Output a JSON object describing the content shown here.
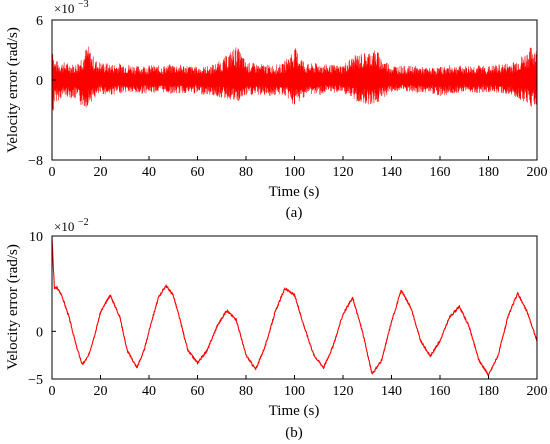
{
  "chart_data": [
    {
      "type": "line",
      "panel_label": "(a)",
      "xlabel": "Time (s)",
      "ylabel": "Velocity error (rad/s)",
      "exponent_base": "×10",
      "exponent_power": "−3",
      "xlim": [
        0,
        200
      ],
      "ylim": [
        -8,
        6
      ],
      "xticks": [
        0,
        20,
        40,
        60,
        80,
        100,
        120,
        140,
        160,
        180,
        200
      ],
      "xtick_labels": [
        "0",
        "20",
        "40",
        "60",
        "80",
        "100",
        "120",
        "140",
        "160",
        "180",
        "200"
      ],
      "yticks": [
        -8,
        0,
        6
      ],
      "ytick_labels": [
        "−8",
        "0",
        "6"
      ],
      "grid": false,
      "series_color": "#ff0000",
      "series": [
        {
          "name": "",
          "x": [
            0,
            0.5,
            1,
            3,
            5,
            8,
            10,
            12,
            14,
            15,
            16,
            18,
            20,
            25,
            30,
            35,
            40,
            45,
            50,
            55,
            60,
            65,
            70,
            74,
            76,
            78,
            80,
            85,
            90,
            95,
            98,
            100,
            102,
            105,
            110,
            115,
            120,
            123,
            126,
            130,
            132,
            134,
            136,
            140,
            145,
            150,
            155,
            160,
            165,
            170,
            175,
            180,
            185,
            190,
            195,
            197,
            199,
            200
          ],
          "amp_upper": [
            6.0,
            3.0,
            2.0,
            1.8,
            1.8,
            1.6,
            1.6,
            2.4,
            3.2,
            3.5,
            2.8,
            2.0,
            1.8,
            1.6,
            1.7,
            1.4,
            1.5,
            1.4,
            1.6,
            1.5,
            1.3,
            1.4,
            2.0,
            3.0,
            3.4,
            2.8,
            1.8,
            1.6,
            1.5,
            1.6,
            2.6,
            3.3,
            2.6,
            1.6,
            1.7,
            1.5,
            1.5,
            2.2,
            2.6,
            2.8,
            3.1,
            3.0,
            2.2,
            1.5,
            1.4,
            1.4,
            1.2,
            1.3,
            1.5,
            1.4,
            1.5,
            1.4,
            1.6,
            1.8,
            2.6,
            3.2,
            3.5,
            3.0
          ],
          "amp_lower": [
            -8.0,
            -3.5,
            -2.2,
            -2.0,
            -1.6,
            -1.8,
            -2.0,
            -2.6,
            -2.8,
            -2.5,
            -2.2,
            -1.8,
            -1.4,
            -1.5,
            -1.2,
            -1.4,
            -1.3,
            -1.2,
            -1.4,
            -1.3,
            -1.4,
            -1.5,
            -1.8,
            -2.0,
            -2.4,
            -2.0,
            -1.6,
            -1.5,
            -1.6,
            -1.5,
            -2.0,
            -2.8,
            -2.2,
            -1.4,
            -1.5,
            -1.3,
            -1.2,
            -1.8,
            -2.2,
            -2.4,
            -2.5,
            -2.4,
            -1.9,
            -1.2,
            -1.1,
            -1.4,
            -1.2,
            -1.6,
            -1.4,
            -1.1,
            -1.3,
            -1.2,
            -1.3,
            -1.6,
            -2.2,
            -2.6,
            -2.8,
            -2.4
          ]
        }
      ]
    },
    {
      "type": "line",
      "panel_label": "(b)",
      "xlabel": "Time (s)",
      "ylabel": "Velocity error (rad/s)",
      "exponent_base": "×10",
      "exponent_power": "−2",
      "xlim": [
        0,
        200
      ],
      "ylim": [
        -5,
        10
      ],
      "xticks": [
        0,
        20,
        40,
        60,
        80,
        100,
        120,
        140,
        160,
        180,
        200
      ],
      "xtick_labels": [
        "0",
        "20",
        "40",
        "60",
        "80",
        "100",
        "120",
        "140",
        "160",
        "180",
        "200"
      ],
      "yticks": [
        -5,
        0,
        10
      ],
      "ytick_labels": [
        "−5",
        "0",
        "10"
      ],
      "grid": false,
      "series_color": "#ff0000",
      "series": [
        {
          "name": "",
          "x": [
            0,
            0.5,
            1,
            2,
            4,
            7,
            10,
            12.5,
            15,
            18,
            20,
            24,
            28,
            31,
            35,
            38,
            41,
            44,
            47,
            50,
            53,
            56,
            60,
            64,
            68,
            72,
            76,
            80,
            84,
            88,
            92,
            96,
            100,
            104,
            108,
            112,
            116,
            120,
            124,
            128,
            132,
            136,
            140,
            144,
            148,
            152,
            156,
            160,
            164,
            168,
            172,
            176,
            180,
            184,
            188,
            192,
            196,
            200
          ],
          "y": [
            10,
            7,
            4.5,
            4.6,
            3.8,
            1.5,
            -1.5,
            -3.5,
            -2.6,
            0.0,
            2.0,
            3.8,
            1.5,
            -2.0,
            -3.8,
            -2.0,
            1.0,
            3.6,
            4.8,
            3.8,
            1.0,
            -2.0,
            -3.3,
            -2.0,
            0.5,
            2.2,
            1.2,
            -2.5,
            -4.0,
            -1.5,
            2.0,
            4.5,
            3.8,
            0.5,
            -2.5,
            -3.8,
            -1.5,
            1.8,
            3.5,
            0.0,
            -4.5,
            -3.0,
            1.0,
            4.3,
            2.5,
            -1.0,
            -2.6,
            -1.0,
            1.5,
            2.6,
            0.5,
            -3.0,
            -4.6,
            -2.5,
            1.5,
            4.0,
            2.0,
            -1.0
          ]
        }
      ]
    }
  ]
}
